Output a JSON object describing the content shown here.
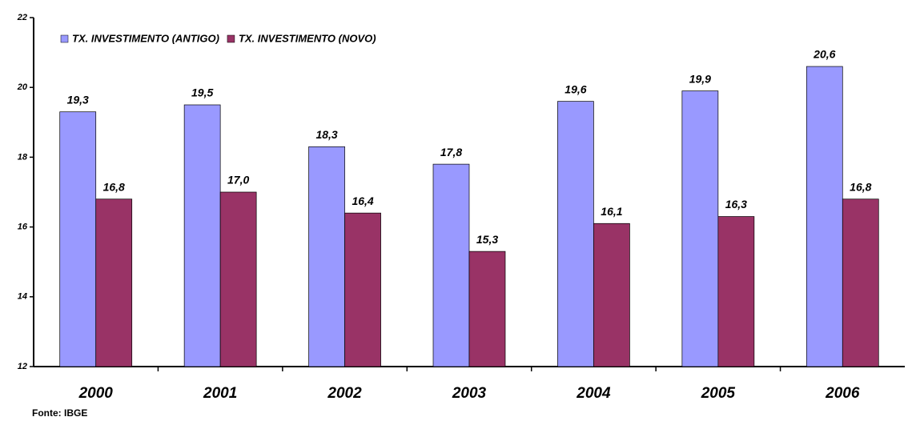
{
  "chart_data": {
    "type": "bar",
    "categories": [
      "2000",
      "2001",
      "2002",
      "2003",
      "2004",
      "2005",
      "2006"
    ],
    "series": [
      {
        "name": "TX. INVESTIMENTO (ANTIGO)",
        "color": "#9999ff",
        "values": [
          19.3,
          19.5,
          18.3,
          17.8,
          19.6,
          19.9,
          20.6
        ],
        "value_labels": [
          "19,3",
          "19,5",
          "18,3",
          "17,8",
          "19,6",
          "19,9",
          "20,6"
        ]
      },
      {
        "name": "TX. INVESTIMENTO (NOVO)",
        "color": "#993366",
        "values": [
          16.8,
          17.0,
          16.4,
          15.3,
          16.1,
          16.3,
          16.8
        ],
        "value_labels": [
          "16,8",
          "17,0",
          "16,4",
          "15,3",
          "16,1",
          "16,3",
          "16,8"
        ]
      }
    ],
    "ylim": [
      12,
      22
    ],
    "yticks": [
      12,
      14,
      16,
      18,
      20,
      22
    ],
    "grid": false,
    "legend": "top-left",
    "source": "Fonte: IBGE"
  }
}
